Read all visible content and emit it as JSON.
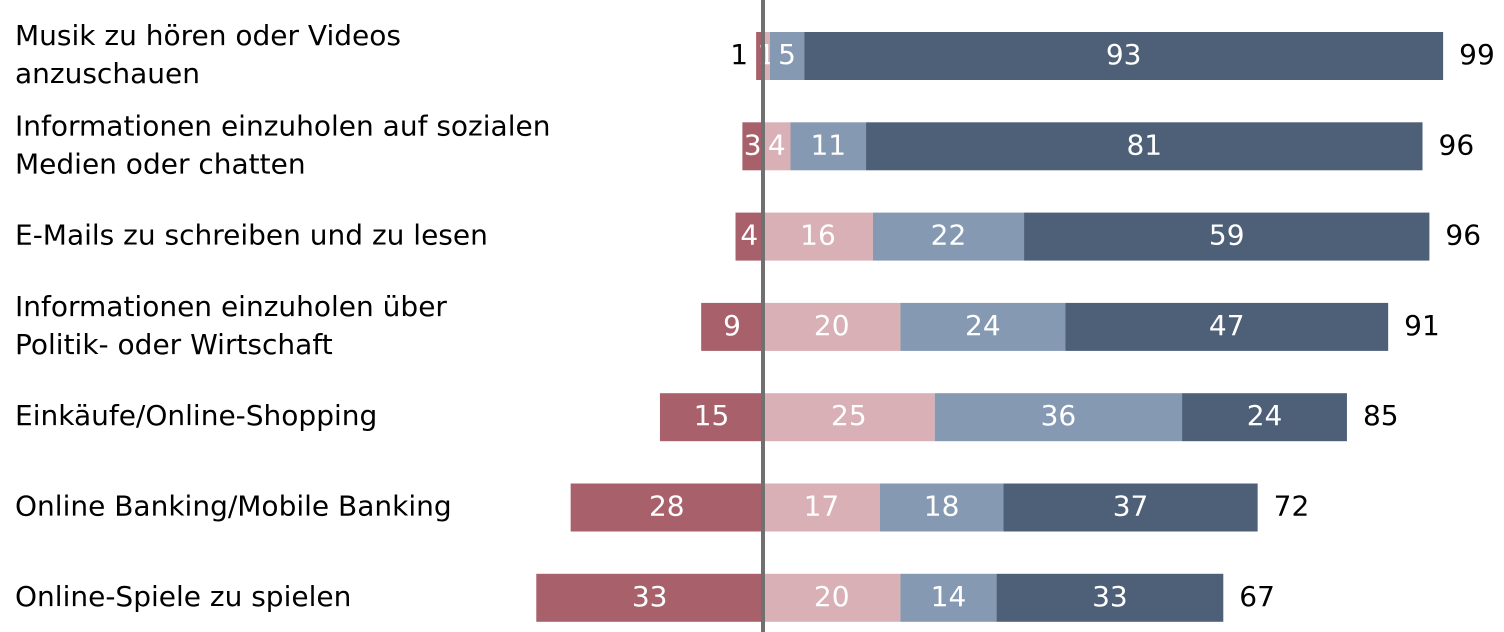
{
  "chart_data": {
    "type": "diverging-bar",
    "categories": [
      [
        "Musik zu hören oder Videos",
        "anzuschauen"
      ],
      [
        "Informationen einzuholen auf sozialen",
        "Medien oder chatten"
      ],
      [
        "E-Mails zu schreiben und zu lesen"
      ],
      [
        "Informationen einzuholen über",
        "Politik- oder Wirtschaft"
      ],
      [
        "Einkäufe/Online-Shopping"
      ],
      [
        "Online Banking/Mobile Banking"
      ],
      [
        "Online-Spiele zu spielen"
      ]
    ],
    "series": [
      {
        "color": "#a8616b",
        "direction": "left",
        "values": [
          1,
          3,
          4,
          9,
          15,
          28,
          33
        ]
      },
      {
        "color": "#d8b0b5",
        "direction": "right",
        "values": [
          1,
          4,
          16,
          20,
          25,
          17,
          20
        ]
      },
      {
        "color": "#8599b2",
        "direction": "right",
        "values": [
          5,
          11,
          22,
          24,
          36,
          18,
          14
        ]
      },
      {
        "color": "#4d6078",
        "direction": "right",
        "values": [
          93,
          81,
          59,
          47,
          24,
          37,
          33
        ]
      }
    ],
    "totals": [
      99,
      96,
      96,
      91,
      85,
      72,
      67
    ]
  }
}
